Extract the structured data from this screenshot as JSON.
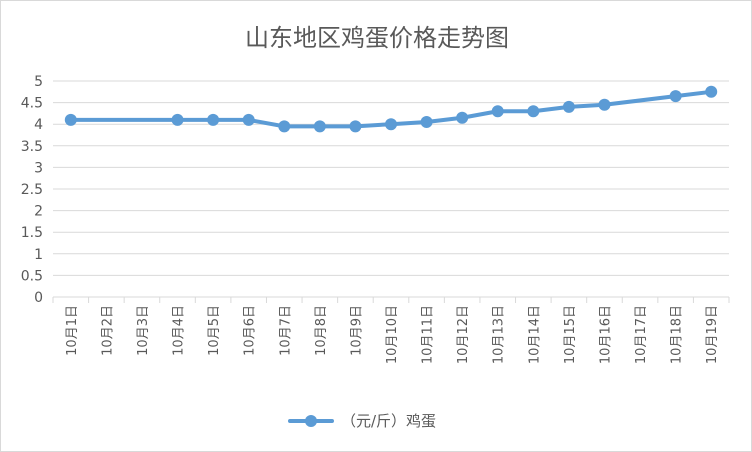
{
  "chart_data": {
    "type": "line",
    "title": "山东地区鸡蛋价格走势图",
    "xlabel": "",
    "ylabel": "",
    "ylim": [
      0,
      5
    ],
    "yticks": [
      "0",
      "0.5",
      "1",
      "1.5",
      "2",
      "2.5",
      "3",
      "3.5",
      "4",
      "4.5",
      "5"
    ],
    "grid": true,
    "legend_position": "bottom",
    "categories": [
      "10月1日",
      "10月2日",
      "10月3日",
      "10月4日",
      "10月5日",
      "10月6日",
      "10月7日",
      "10月8日",
      "10月9日",
      "10月10日",
      "10月11日",
      "10月12日",
      "10月13日",
      "10月14日",
      "10月15日",
      "10月16日",
      "10月17日",
      "10月18日",
      "10月19日"
    ],
    "series": [
      {
        "name": "（元/斤）鸡蛋",
        "color": "#5b9bd5",
        "values": [
          4.1,
          null,
          null,
          4.1,
          4.1,
          4.1,
          3.95,
          3.95,
          3.95,
          4.0,
          4.05,
          4.15,
          4.3,
          4.3,
          4.4,
          4.45,
          null,
          4.65,
          4.75
        ]
      }
    ]
  }
}
